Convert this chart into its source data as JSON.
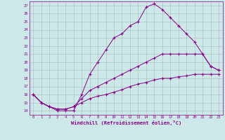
{
  "xlabel": "Windchill (Refroidissement éolien,°C)",
  "background_color": "#cce8e8",
  "line_color": "#880088",
  "grid_color": "#aabbbb",
  "xlim": [
    -0.5,
    23.5
  ],
  "ylim": [
    13.5,
    27.5
  ],
  "yticks": [
    14,
    15,
    16,
    17,
    18,
    19,
    20,
    21,
    22,
    23,
    24,
    25,
    26,
    27
  ],
  "xticks": [
    0,
    1,
    2,
    3,
    4,
    5,
    6,
    7,
    8,
    9,
    10,
    11,
    12,
    13,
    14,
    15,
    16,
    17,
    18,
    19,
    20,
    21,
    22,
    23
  ],
  "curve1_x": [
    0,
    1,
    2,
    3,
    4,
    5,
    6,
    7,
    8,
    9,
    10,
    11,
    12,
    13,
    14,
    15,
    16,
    17,
    18,
    19,
    20,
    21,
    22,
    23
  ],
  "curve1_y": [
    16,
    15,
    14.5,
    14,
    14,
    14,
    16,
    18.5,
    20,
    21.5,
    23,
    23.5,
    24.5,
    25,
    26.8,
    27.2,
    26.5,
    25.5,
    24.5,
    23.5,
    22.5,
    21,
    19.5,
    19
  ],
  "curve2_x": [
    0,
    1,
    2,
    3,
    4,
    5,
    6,
    7,
    8,
    9,
    10,
    11,
    12,
    13,
    14,
    15,
    16,
    17,
    18,
    19,
    20,
    21,
    22,
    23
  ],
  "curve2_y": [
    16,
    15,
    14.5,
    14.2,
    14.2,
    14.5,
    15.5,
    16.5,
    17,
    17.5,
    18,
    18.5,
    19,
    19.5,
    20,
    20.5,
    21,
    21,
    21,
    21,
    21,
    21,
    19.5,
    19
  ],
  "curve3_x": [
    0,
    1,
    2,
    3,
    4,
    5,
    6,
    7,
    8,
    9,
    10,
    11,
    12,
    13,
    14,
    15,
    16,
    17,
    18,
    19,
    20,
    21,
    22,
    23
  ],
  "curve3_y": [
    16,
    15,
    14.5,
    14.2,
    14.2,
    14.5,
    15,
    15.5,
    15.8,
    16,
    16.3,
    16.6,
    17,
    17.3,
    17.5,
    17.8,
    18,
    18,
    18.2,
    18.3,
    18.5,
    18.5,
    18.5,
    18.5
  ]
}
